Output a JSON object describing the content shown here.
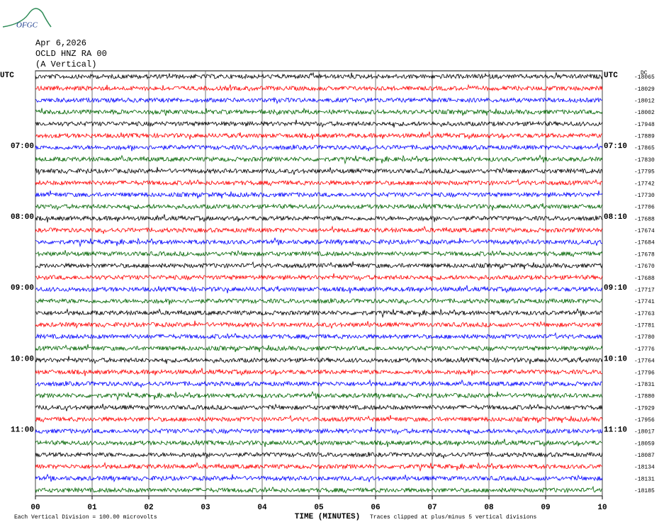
{
  "chart_data": {
    "type": "helicorder",
    "logo": "OFGC",
    "header": [
      "Apr 6,2026",
      "OCLD HNZ RA 00",
      "(A Vertical)"
    ],
    "dc_label": "DC",
    "xlabel": "TIME (MINUTES)",
    "xlim": [
      0,
      10
    ],
    "xticks": [
      {
        "value": 0,
        "label": "00"
      },
      {
        "value": 1,
        "label": "01"
      },
      {
        "value": 2,
        "label": "02"
      },
      {
        "value": 3,
        "label": "03"
      },
      {
        "value": 4,
        "label": "04"
      },
      {
        "value": 5,
        "label": "05"
      },
      {
        "value": 6,
        "label": "06"
      },
      {
        "value": 7,
        "label": "07"
      },
      {
        "value": 8,
        "label": "08"
      },
      {
        "value": 9,
        "label": "09"
      },
      {
        "value": 10,
        "label": "10"
      }
    ],
    "grid": true,
    "left_labels": [
      "UTC",
      null,
      null,
      null,
      null,
      null,
      "07:00",
      null,
      null,
      null,
      null,
      null,
      "08:00",
      null,
      null,
      null,
      null,
      null,
      "09:00",
      null,
      null,
      null,
      null,
      null,
      "10:00",
      null,
      null,
      null,
      null,
      null,
      "11:00",
      null,
      null,
      null,
      null,
      null
    ],
    "right_labels": [
      "UTC",
      null,
      null,
      null,
      null,
      null,
      "07:10",
      null,
      null,
      null,
      null,
      null,
      "08:10",
      null,
      null,
      null,
      null,
      null,
      "09:10",
      null,
      null,
      null,
      null,
      null,
      "10:10",
      null,
      null,
      null,
      null,
      null,
      "11:10",
      null,
      null,
      null,
      null,
      null
    ],
    "series": [
      {
        "name": "-18065",
        "color": "#000000"
      },
      {
        "name": "-18029",
        "color": "#ff0000"
      },
      {
        "name": "-18012",
        "color": "#0000ff"
      },
      {
        "name": "-18002",
        "color": "#006400"
      },
      {
        "name": "-17948",
        "color": "#000000"
      },
      {
        "name": "-17889",
        "color": "#ff0000"
      },
      {
        "name": "-17865",
        "color": "#0000ff"
      },
      {
        "name": "-17830",
        "color": "#006400"
      },
      {
        "name": "-17795",
        "color": "#000000"
      },
      {
        "name": "-17742",
        "color": "#ff0000"
      },
      {
        "name": "-17730",
        "color": "#0000ff"
      },
      {
        "name": "-17706",
        "color": "#006400"
      },
      {
        "name": "-17688",
        "color": "#000000"
      },
      {
        "name": "-17674",
        "color": "#ff0000"
      },
      {
        "name": "-17684",
        "color": "#0000ff"
      },
      {
        "name": "-17678",
        "color": "#006400"
      },
      {
        "name": "-17670",
        "color": "#000000"
      },
      {
        "name": "-17688",
        "color": "#ff0000"
      },
      {
        "name": "-17717",
        "color": "#0000ff"
      },
      {
        "name": "-17741",
        "color": "#006400"
      },
      {
        "name": "-17763",
        "color": "#000000"
      },
      {
        "name": "-17781",
        "color": "#ff0000"
      },
      {
        "name": "-17780",
        "color": "#0000ff"
      },
      {
        "name": "-17776",
        "color": "#006400"
      },
      {
        "name": "-17764",
        "color": "#000000"
      },
      {
        "name": "-17796",
        "color": "#ff0000"
      },
      {
        "name": "-17831",
        "color": "#0000ff"
      },
      {
        "name": "-17880",
        "color": "#006400"
      },
      {
        "name": "-17929",
        "color": "#000000"
      },
      {
        "name": "-17956",
        "color": "#ff0000"
      },
      {
        "name": "-18017",
        "color": "#0000ff"
      },
      {
        "name": "-18059",
        "color": "#006400"
      },
      {
        "name": "-18087",
        "color": "#000000"
      },
      {
        "name": "-18134",
        "color": "#ff0000"
      },
      {
        "name": "-18131",
        "color": "#0000ff"
      },
      {
        "name": "-18185",
        "color": "#006400"
      }
    ],
    "footer_left": "Each Vertical Division =  100.00 microvolts",
    "footer_right": "Traces clipped at plus/minus 5 vertical divisions"
  }
}
